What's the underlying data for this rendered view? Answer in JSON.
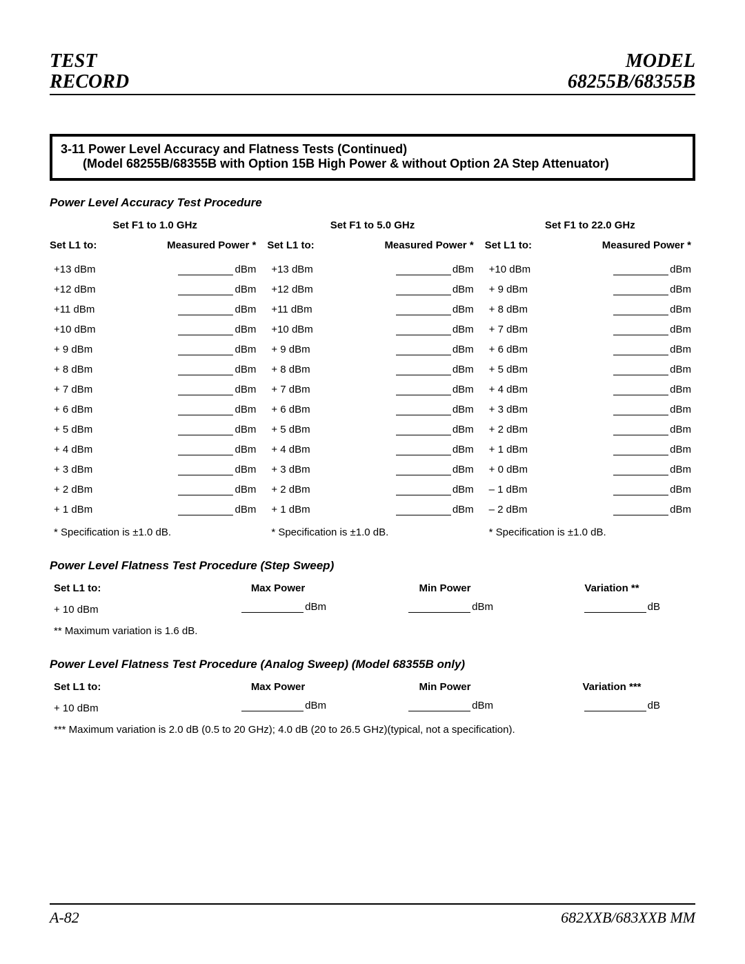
{
  "header": {
    "left_line1": "TEST",
    "left_line2": "RECORD",
    "right_line1": "MODEL",
    "right_line2": "68255B/68355B"
  },
  "title": {
    "line1": "3-11 Power Level Accuracy and Flatness Tests (Continued)",
    "line2": "(Model 68255B/68355B with Option 15B High Power & without Option 2A Step Attenuator)"
  },
  "accuracy": {
    "section_title": "Power Level Accuracy Test Procedure",
    "col_head_set_l1": "Set L1 to:",
    "col_head_measured": "Measured Power *",
    "blank_unit": "dBm",
    "spec_note": "* Specification is ±1.0 dB.",
    "columns": [
      {
        "heading": "Set F1 to 1.0 GHz",
        "rows": [
          "+13 dBm",
          "+12 dBm",
          "+11 dBm",
          "+10 dBm",
          "+ 9 dBm",
          "+ 8 dBm",
          "+ 7 dBm",
          "+ 6 dBm",
          "+ 5 dBm",
          "+ 4 dBm",
          "+ 3 dBm",
          "+ 2 dBm",
          "+ 1 dBm"
        ]
      },
      {
        "heading": "Set F1 to 5.0 GHz",
        "rows": [
          "+13 dBm",
          "+12 dBm",
          "+11 dBm",
          "+10 dBm",
          "+ 9 dBm",
          "+ 8 dBm",
          "+ 7 dBm",
          "+ 6 dBm",
          "+ 5 dBm",
          "+ 4 dBm",
          "+ 3 dBm",
          "+ 2 dBm",
          "+ 1 dBm"
        ]
      },
      {
        "heading": "Set F1 to 22.0 GHz",
        "rows": [
          "+10 dBm",
          "+ 9 dBm",
          "+ 8 dBm",
          "+ 7 dBm",
          "+ 6 dBm",
          "+ 5 dBm",
          "+ 4 dBm",
          "+ 3 dBm",
          "+ 2 dBm",
          "+ 1 dBm",
          "+ 0 dBm",
          "– 1 dBm",
          "– 2 dBm"
        ]
      }
    ]
  },
  "flatness_step": {
    "section_title": "Power Level Flatness Test Procedure (Step Sweep)",
    "head_set_l1": "Set L1 to:",
    "head_max": "Max Power",
    "head_min": "Min Power",
    "head_var": "Variation **",
    "row_set_l1": "+ 10 dBm",
    "unit_dbm": "dBm",
    "unit_db": "dB",
    "note": "** Maximum variation is 1.6 dB."
  },
  "flatness_analog": {
    "section_title": "Power Level Flatness Test Procedure (Analog Sweep) (Model 68355B only)",
    "head_set_l1": "Set L1 to:",
    "head_max": "Max Power",
    "head_min": "Min Power",
    "head_var": "Variation ***",
    "row_set_l1": "+ 10 dBm",
    "unit_dbm": "dBm",
    "unit_db": "dB",
    "note": "*** Maximum variation is 2.0 dB (0.5 to 20 GHz); 4.0 dB (20 to 26.5 GHz)(typical, not a specification)."
  },
  "footer": {
    "left": "A-82",
    "right": "682XXB/683XXB MM"
  }
}
